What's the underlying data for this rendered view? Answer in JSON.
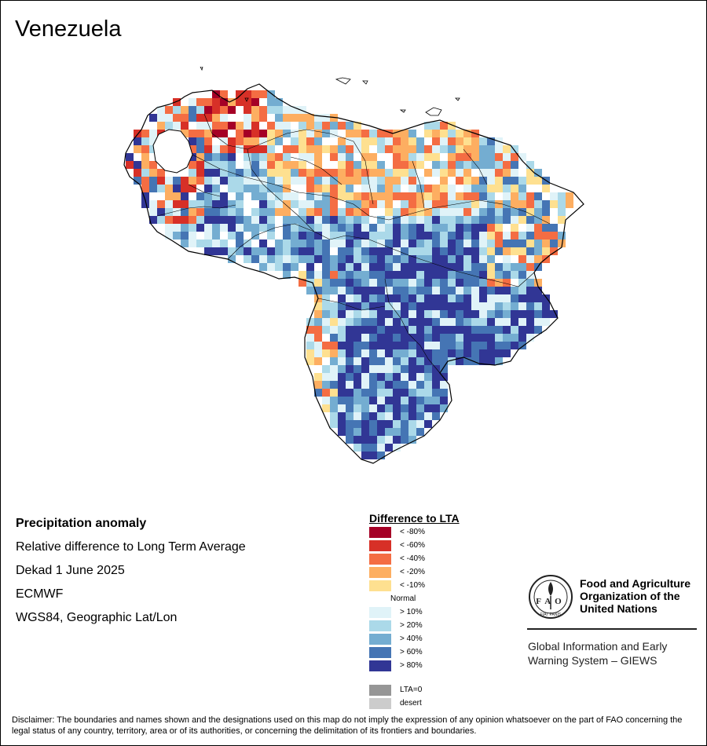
{
  "title": "Venezuela",
  "info": {
    "product": "Precipitation anomaly",
    "description": "Relative difference to Long Term Average",
    "period": "Dekad 1 June 2025",
    "source": "ECMWF",
    "projection": "WGS84, Geographic Lat/Lon"
  },
  "legend": {
    "title": "Difference to LTA",
    "classes": [
      {
        "label": "< -80%",
        "color": "#a50026"
      },
      {
        "label": "< -60%",
        "color": "#d73027"
      },
      {
        "label": "< -40%",
        "color": "#f46d43"
      },
      {
        "label": "< -20%",
        "color": "#fdae61"
      },
      {
        "label": "< -10%",
        "color": "#fee090"
      },
      {
        "label": "Normal",
        "color": "#ffffff"
      },
      {
        "label": "> 10%",
        "color": "#e0f3f8"
      },
      {
        "label": "> 20%",
        "color": "#abd9e9"
      },
      {
        "label": "> 40%",
        "color": "#74add1"
      },
      {
        "label": "> 60%",
        "color": "#4575b4"
      },
      {
        "label": "> 80%",
        "color": "#313695"
      }
    ],
    "extra": [
      {
        "label": "LTA=0",
        "color": "#969696"
      },
      {
        "label": "desert",
        "color": "#cccccc"
      }
    ]
  },
  "org": {
    "name_lines": [
      "Food and Agriculture",
      "Organization of the",
      "United Nations"
    ],
    "logo_text": "FAO",
    "motto": "FIAT PANIS",
    "system_lines": [
      "Global Information and Early",
      "Warning System – GIEWS"
    ]
  },
  "disclaimer": "Disclaimer: The boundaries and names shown and the designations used on this map do not imply the expression of any opinion whatsoever on the part of FAO concerning the legal status of any country, territory, area or of its authorities, or concerning the delimitation of its frontiers and boundaries."
}
